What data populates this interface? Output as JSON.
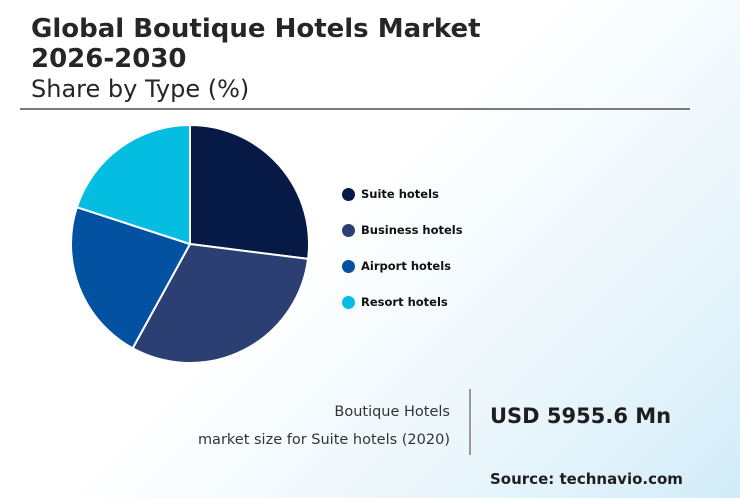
{
  "header": {
    "title": "Global Boutique Hotels Market 2026-2030",
    "subtitle": "Share by Type (%)"
  },
  "chart_data": {
    "type": "pie",
    "title": "Share by Type (%)",
    "categories": [
      "Suite hotels",
      "Business hotels",
      "Airport hotels",
      "Resort hotels"
    ],
    "values": [
      27,
      31,
      22,
      20
    ],
    "colors": [
      "#071a45",
      "#2b3f72",
      "#0352a1",
      "#04bde0"
    ],
    "legend_position": "right"
  },
  "highlight": {
    "caption_line1": "Boutique Hotels",
    "caption_line2": "market size for Suite hotels (2020)",
    "value": "USD 5955.6 Mn"
  },
  "footer": {
    "source": "Source: technavio.com"
  }
}
